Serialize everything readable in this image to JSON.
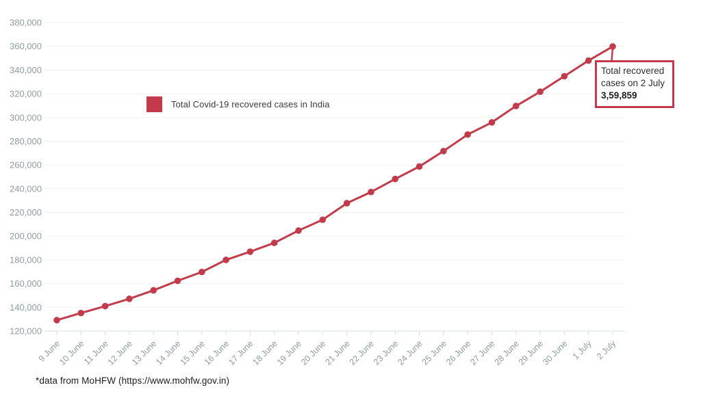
{
  "colors": {
    "accent": "#c23b4a",
    "grid": "#f1f1f2",
    "baseline": "#d6dcdf",
    "tick": "#d6dcdf",
    "axis_label": "#8f9da3",
    "legend_text": "#3a3a3a",
    "footer_text": "#1c1c1c"
  },
  "chart_data": {
    "type": "line",
    "title": "",
    "xlabel": "",
    "ylabel": "",
    "categories": [
      "9 June",
      "10 June",
      "11 June",
      "12 June",
      "13 June",
      "14 June",
      "15 June",
      "16 June",
      "17 June",
      "18 June",
      "19 June",
      "20 June",
      "21 June",
      "22 June",
      "23 June",
      "24 June",
      "25 June",
      "26 June",
      "27 June",
      "28 June",
      "29 June",
      "30 June",
      "1 July",
      "2 July"
    ],
    "series": [
      {
        "name": "Total Covid-19 recovered cases in India",
        "color": "#c23b4a",
        "values": [
          129215,
          135206,
          141029,
          147195,
          154330,
          162379,
          169798,
          180013,
          186935,
          194325,
          204711,
          213831,
          227756,
          237196,
          248190,
          258685,
          271697,
          285637,
          295881,
          309713,
          321723,
          334822,
          347979,
          359859
        ]
      }
    ],
    "ylim": [
      120000,
      380000
    ],
    "ytick_step": 20000,
    "grid": "horizontal-only",
    "legend_position": "inside-top-left",
    "marker": "circle",
    "annotation": {
      "target_category": "2 July",
      "target_value": 359859,
      "line1": "Total recovered",
      "line2": "cases on 2 July",
      "value": "3,59,859"
    }
  },
  "footer": {
    "text": "*data from MoHFW (https://www.mohfw.gov.in)"
  }
}
